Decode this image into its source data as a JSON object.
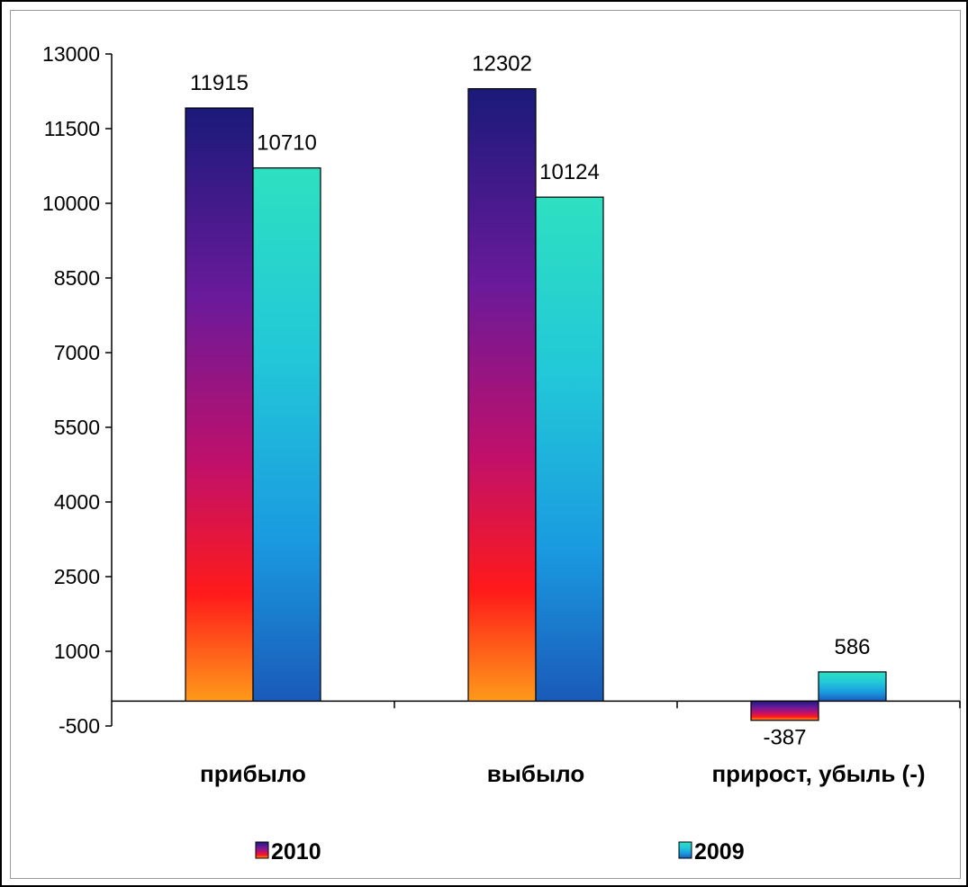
{
  "chart_data": {
    "type": "bar",
    "categories": [
      "прибыло",
      "выбыло",
      "прирост, убыль (-)"
    ],
    "series": [
      {
        "name": "2010",
        "values": [
          11915,
          12302,
          -387
        ]
      },
      {
        "name": "2009",
        "values": [
          10710,
          10124,
          586
        ]
      }
    ],
    "data_labels": [
      [
        "11915",
        "12302",
        "-387"
      ],
      [
        "10710",
        "10124",
        "586"
      ]
    ],
    "yticks": [
      "13000",
      "11500",
      "10000",
      "8500",
      "7000",
      "5500",
      "4000",
      "2500",
      "1000",
      "-500"
    ],
    "ylim": [
      -500,
      13000
    ],
    "legend_position": "bottom",
    "colors": {
      "series_2010": [
        "#1a1a7a",
        "#6a1a9a",
        "#c0106a",
        "#ff1a1a",
        "#ff9a1a"
      ],
      "series_2009": [
        "#2ee0c0",
        "#22c8d8",
        "#1a9ae0",
        "#1a5ab8"
      ]
    }
  }
}
